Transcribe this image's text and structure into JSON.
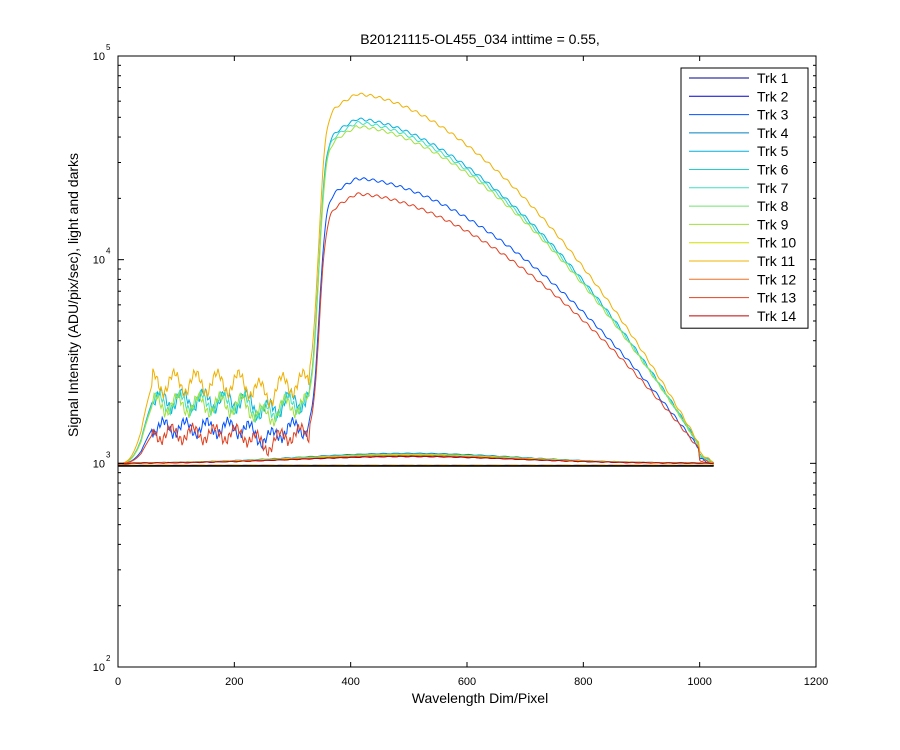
{
  "chart_data": {
    "type": "line",
    "title": "B20121115-OL455_034 inttime = 0.55,",
    "xlabel": "Wavelength Dim/Pixel",
    "ylabel": "Signal Intensity (ADU/pix/sec), light and darks",
    "xlim": [
      0,
      1200
    ],
    "ylim": [
      100,
      100000
    ],
    "yscale": "log",
    "xticks": [
      0,
      200,
      400,
      600,
      800,
      1000,
      1200
    ],
    "yticks": [
      {
        "base": "10",
        "exp": "2",
        "value": 100
      },
      {
        "base": "10",
        "exp": "3",
        "value": 1000
      },
      {
        "base": "10",
        "exp": "4",
        "value": 10000
      },
      {
        "base": "10",
        "exp": "5",
        "value": 100000
      }
    ],
    "grid": false,
    "legend_position": "top-right",
    "dark_level": 970,
    "series": [
      {
        "name": "Trk 1",
        "color": "#00008F",
        "peak": 1080,
        "pre": 1000,
        "ripple": 0,
        "dark": 975
      },
      {
        "name": "Trk 2",
        "color": "#0000CF",
        "peak": 1090,
        "pre": 1000,
        "ripple": 0,
        "dark": 972
      },
      {
        "name": "Trk 3",
        "color": "#0050FF",
        "peak": 25000,
        "pre": 1500,
        "ripple": 0.08,
        "dark": 975
      },
      {
        "name": "Trk 4",
        "color": "#0080C0",
        "peak": 1120,
        "pre": 1000,
        "ripple": 0,
        "dark": 975
      },
      {
        "name": "Trk 5",
        "color": "#00B0E0",
        "peak": 49000,
        "pre": 2050,
        "ripple": 0.1,
        "dark": 978
      },
      {
        "name": "Trk 6",
        "color": "#20D0D0",
        "peak": 1110,
        "pre": 1000,
        "ripple": 0,
        "dark": 976
      },
      {
        "name": "Trk 7",
        "color": "#40E0C0",
        "peak": 47000,
        "pre": 2000,
        "ripple": 0.1,
        "dark": 976
      },
      {
        "name": "Trk 8",
        "color": "#70E070",
        "peak": 1100,
        "pre": 1000,
        "ripple": 0,
        "dark": 974
      },
      {
        "name": "Trk 9",
        "color": "#A0E040",
        "peak": 45000,
        "pre": 1950,
        "ripple": 0.1,
        "dark": 976
      },
      {
        "name": "Trk 10",
        "color": "#D0E000",
        "peak": 1105,
        "pre": 1000,
        "ripple": 0,
        "dark": 975
      },
      {
        "name": "Trk 11",
        "color": "#F0B000",
        "peak": 65000,
        "pre": 2500,
        "ripple": 0.12,
        "dark": 978
      },
      {
        "name": "Trk 12",
        "color": "#F07020",
        "peak": 1090,
        "pre": 1000,
        "ripple": 0,
        "dark": 974
      },
      {
        "name": "Trk 13",
        "color": "#E04020",
        "peak": 21000,
        "pre": 1400,
        "ripple": 0.08,
        "dark": 975
      },
      {
        "name": "Trk 14",
        "color": "#C00000",
        "peak": 1080,
        "pre": 1000,
        "ripple": 0,
        "dark": 973
      }
    ]
  }
}
